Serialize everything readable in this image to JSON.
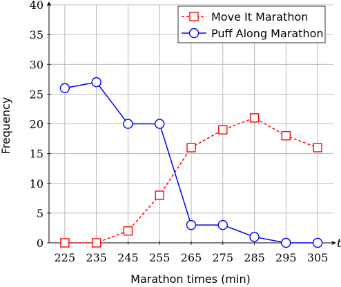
{
  "chart_data": {
    "type": "line",
    "title": "",
    "xlabel": "Marathon times (min)",
    "ylabel": "Frequency",
    "x_axis_variable": "t",
    "x": [
      225,
      235,
      245,
      255,
      265,
      275,
      285,
      295,
      305
    ],
    "xlim": [
      220,
      310
    ],
    "ylim": [
      0,
      40
    ],
    "x_ticks": [
      225,
      235,
      245,
      255,
      265,
      275,
      285,
      295,
      305
    ],
    "y_ticks": [
      0,
      5,
      10,
      15,
      20,
      25,
      30,
      35,
      40
    ],
    "grid": true,
    "legend_position": "top-right",
    "series": [
      {
        "name": "Move It Marathon",
        "values": [
          0,
          0,
          2,
          8,
          16,
          19,
          21,
          18,
          16
        ],
        "color": "#ff0000",
        "line_style": "dashed",
        "marker": "square"
      },
      {
        "name": "Puff Along Marathon",
        "values": [
          26,
          27,
          20,
          20,
          3,
          3,
          1,
          0,
          0
        ],
        "color": "#0000ff",
        "line_style": "solid",
        "marker": "circle"
      }
    ]
  }
}
